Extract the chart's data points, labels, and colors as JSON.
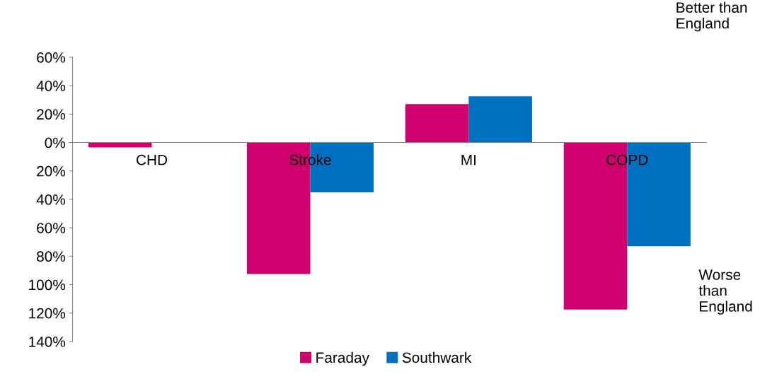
{
  "chart_data": {
    "type": "bar",
    "categories": [
      "CHD",
      "Stroke",
      "MI",
      "COPD"
    ],
    "series": [
      {
        "name": "Faraday",
        "color": "#d0006f",
        "values": [
          -3.5,
          -92.5,
          27,
          -117.5
        ]
      },
      {
        "name": "Southwark",
        "color": "#0070c0",
        "values": [
          0,
          -35,
          32.5,
          -73
        ]
      }
    ],
    "ylim": [
      -140,
      60
    ],
    "yticks": [
      {
        "value": -140,
        "label": "140%"
      },
      {
        "value": -120,
        "label": "120%"
      },
      {
        "value": -100,
        "label": "100%"
      },
      {
        "value": -80,
        "label": "80%"
      },
      {
        "value": -60,
        "label": "60%"
      },
      {
        "value": -40,
        "label": "40%"
      },
      {
        "value": -20,
        "label": "20%"
      },
      {
        "value": 0,
        "label": "0%"
      },
      {
        "value": 20,
        "label": "20%"
      },
      {
        "value": 40,
        "label": "40%"
      },
      {
        "value": 60,
        "label": "60%"
      }
    ],
    "annotations": [
      "Better than\nEngland",
      "Worse\nthan\nEngland"
    ],
    "legend": "bottom",
    "grid": false
  }
}
